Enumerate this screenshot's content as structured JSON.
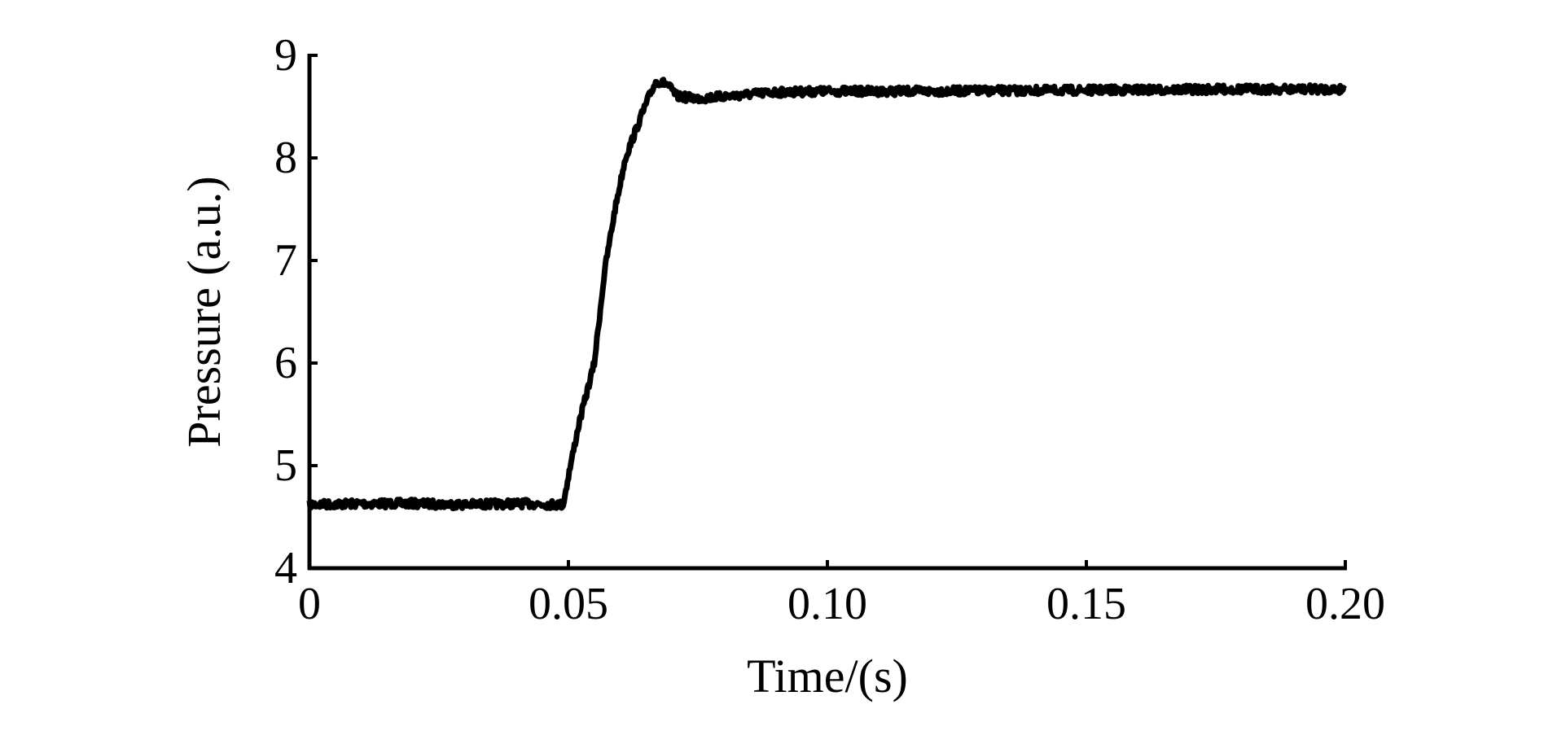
{
  "chart_data": {
    "type": "line",
    "title": "",
    "xlabel": "Time/(s)",
    "ylabel": "Pressure (a.u.)",
    "xlim": [
      0,
      0.2
    ],
    "ylim": [
      4,
      9
    ],
    "xticks": [
      "0",
      "0.05",
      "0.10",
      "0.15",
      "0.20"
    ],
    "xtick_values": [
      0,
      0.05,
      0.1,
      0.15,
      0.2
    ],
    "yticks": [
      "4",
      "5",
      "6",
      "7",
      "8",
      "9"
    ],
    "ytick_values": [
      4,
      5,
      6,
      7,
      8,
      9
    ],
    "grid": false,
    "line_color": "#000000",
    "series": [
      {
        "x": [
          0,
          0.01,
          0.02,
          0.03,
          0.04,
          0.049,
          0.05,
          0.052,
          0.055,
          0.057,
          0.059,
          0.061,
          0.064,
          0.066,
          0.067,
          0.069,
          0.071,
          0.075,
          0.08,
          0.09,
          0.1,
          0.12,
          0.15,
          0.18,
          0.2
        ],
        "y": [
          4.62,
          4.63,
          4.63,
          4.62,
          4.63,
          4.62,
          4.9,
          5.4,
          6.0,
          6.9,
          7.5,
          8.0,
          8.4,
          8.65,
          8.75,
          8.72,
          8.6,
          8.58,
          8.6,
          8.64,
          8.65,
          8.65,
          8.66,
          8.67,
          8.67
        ]
      }
    ]
  }
}
